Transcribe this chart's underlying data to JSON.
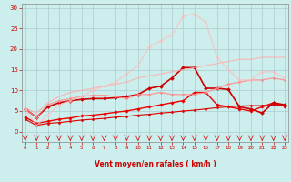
{
  "xlabel": "Vent moyen/en rafales ( km/h )",
  "x": [
    0,
    1,
    2,
    3,
    4,
    5,
    6,
    7,
    8,
    9,
    10,
    11,
    12,
    13,
    14,
    15,
    16,
    17,
    18,
    19,
    20,
    21,
    22,
    23
  ],
  "background_color": "#cceeed",
  "grid_color": "#aacccc",
  "lines": [
    {
      "y": [
        3.0,
        1.5,
        2.0,
        2.2,
        2.5,
        2.8,
        3.0,
        3.2,
        3.5,
        3.7,
        4.0,
        4.2,
        4.5,
        4.7,
        5.0,
        5.2,
        5.5,
        5.8,
        6.0,
        6.2,
        6.3,
        6.3,
        6.5,
        6.3
      ],
      "color": "#dd0000",
      "alpha": 1.0,
      "linewidth": 0.8,
      "marker": "D",
      "markersize": 1.5
    },
    {
      "y": [
        3.5,
        2.0,
        2.5,
        3.0,
        3.3,
        3.8,
        4.0,
        4.3,
        4.7,
        5.0,
        5.5,
        6.0,
        6.5,
        7.0,
        7.5,
        9.5,
        9.5,
        6.5,
        6.0,
        5.5,
        5.0,
        6.0,
        7.0,
        6.2
      ],
      "color": "#ee0000",
      "alpha": 1.0,
      "linewidth": 1.0,
      "marker": "D",
      "markersize": 1.8
    },
    {
      "y": [
        5.5,
        3.5,
        6.0,
        7.0,
        7.5,
        7.8,
        8.0,
        8.0,
        8.2,
        8.5,
        9.0,
        10.5,
        11.0,
        13.0,
        15.5,
        15.5,
        10.5,
        10.5,
        10.2,
        6.0,
        5.5,
        4.5,
        7.0,
        6.5
      ],
      "color": "#cc0000",
      "alpha": 1.0,
      "linewidth": 1.2,
      "marker": "D",
      "markersize": 2.0
    },
    {
      "y": [
        5.5,
        3.5,
        6.5,
        7.5,
        8.0,
        8.5,
        8.8,
        8.8,
        8.5,
        8.0,
        9.0,
        9.0,
        9.5,
        9.0,
        9.0,
        9.0,
        9.5,
        10.5,
        11.5,
        12.0,
        12.5,
        12.5,
        13.0,
        12.5
      ],
      "color": "#ff8888",
      "alpha": 0.85,
      "linewidth": 0.9,
      "marker": "D",
      "markersize": 1.5
    },
    {
      "y": [
        5.8,
        4.5,
        7.0,
        8.5,
        9.5,
        10.0,
        10.5,
        11.0,
        11.5,
        12.0,
        13.0,
        13.5,
        14.0,
        14.5,
        15.0,
        15.5,
        16.0,
        16.5,
        17.0,
        17.5,
        17.5,
        18.0,
        18.0,
        18.0
      ],
      "color": "#ffaaaa",
      "alpha": 0.75,
      "linewidth": 0.9,
      "marker": null,
      "markersize": 0
    },
    {
      "y": [
        5.5,
        1.5,
        4.0,
        6.5,
        7.5,
        8.5,
        10.0,
        11.0,
        12.0,
        14.0,
        16.0,
        20.5,
        22.0,
        23.5,
        28.0,
        28.5,
        26.5,
        18.0,
        15.0,
        12.5,
        12.5,
        14.5,
        14.5,
        13.0
      ],
      "color": "#ffbbbb",
      "alpha": 0.75,
      "linewidth": 0.9,
      "marker": "D",
      "markersize": 1.5
    }
  ],
  "ylim": [
    -2.5,
    31
  ],
  "yticks": [
    0,
    5,
    10,
    15,
    20,
    25,
    30
  ],
  "xlim": [
    -0.3,
    23.3
  ],
  "tick_color": "#cc0000",
  "label_color": "#cc0000",
  "arrow_color": "#dd0000"
}
